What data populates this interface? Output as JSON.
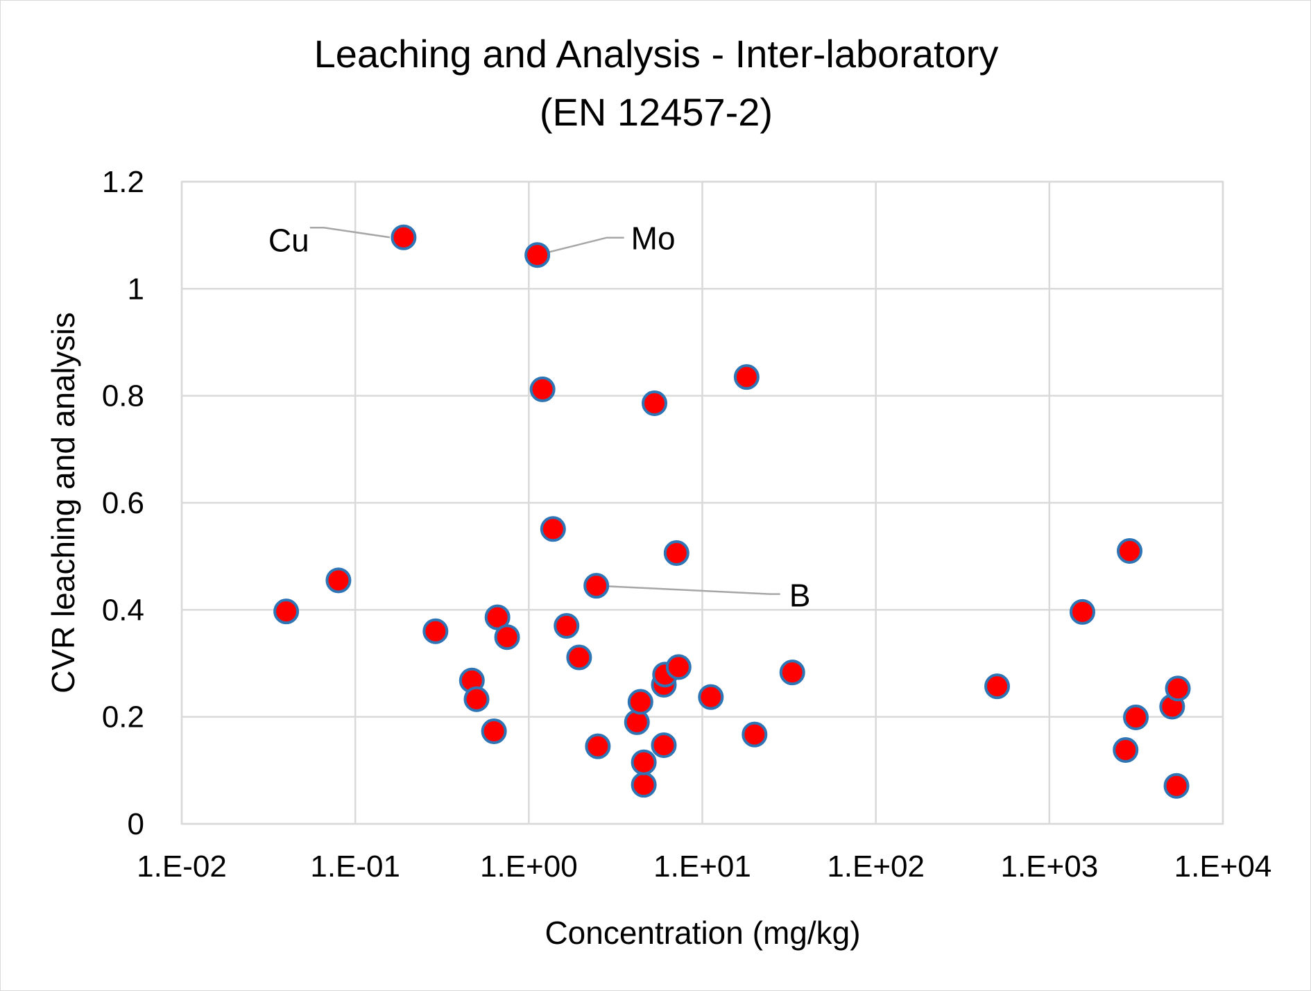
{
  "chart_data": {
    "type": "scatter",
    "title": [
      "Leaching and Analysis - Inter-laboratory",
      "(EN 12457-2)"
    ],
    "xlabel": "Concentration (mg/kg)",
    "ylabel": "CVR leaching and analysis",
    "x_scale": "log",
    "xlim": [
      0.01,
      10000
    ],
    "ylim": [
      0,
      1.2
    ],
    "x_ticks": [
      {
        "value": 0.01,
        "label": "1.E-02"
      },
      {
        "value": 0.1,
        "label": "1.E-01"
      },
      {
        "value": 1,
        "label": "1.E+00"
      },
      {
        "value": 10,
        "label": "1.E+01"
      },
      {
        "value": 100,
        "label": "1.E+02"
      },
      {
        "value": 1000,
        "label": "1.E+03"
      },
      {
        "value": 10000,
        "label": "1.E+04"
      }
    ],
    "y_ticks": [
      {
        "value": 0,
        "label": "0"
      },
      {
        "value": 0.2,
        "label": "0.2"
      },
      {
        "value": 0.4,
        "label": "0.4"
      },
      {
        "value": 0.6,
        "label": "0.6"
      },
      {
        "value": 0.8,
        "label": "0.8"
      },
      {
        "value": 1,
        "label": "1"
      },
      {
        "value": 1.2,
        "label": "1.2"
      }
    ],
    "grid": true,
    "marker_fill": "#ff0000",
    "marker_edge": "#2e75b6",
    "points": [
      {
        "x": 0.04,
        "y": 0.397
      },
      {
        "x": 0.08,
        "y": 0.455
      },
      {
        "x": 0.19,
        "y": 1.096
      },
      {
        "x": 0.29,
        "y": 0.36
      },
      {
        "x": 0.47,
        "y": 0.268
      },
      {
        "x": 0.5,
        "y": 0.233
      },
      {
        "x": 0.63,
        "y": 0.173
      },
      {
        "x": 0.66,
        "y": 0.386
      },
      {
        "x": 0.75,
        "y": 0.349
      },
      {
        "x": 1.12,
        "y": 1.063
      },
      {
        "x": 1.2,
        "y": 0.812
      },
      {
        "x": 1.38,
        "y": 0.551
      },
      {
        "x": 1.65,
        "y": 0.37
      },
      {
        "x": 1.95,
        "y": 0.311
      },
      {
        "x": 2.45,
        "y": 0.445
      },
      {
        "x": 2.5,
        "y": 0.145
      },
      {
        "x": 4.2,
        "y": 0.19
      },
      {
        "x": 4.4,
        "y": 0.228
      },
      {
        "x": 4.6,
        "y": 0.073
      },
      {
        "x": 4.6,
        "y": 0.115
      },
      {
        "x": 5.3,
        "y": 0.786
      },
      {
        "x": 6.0,
        "y": 0.26
      },
      {
        "x": 6.0,
        "y": 0.147
      },
      {
        "x": 6.1,
        "y": 0.279
      },
      {
        "x": 7.1,
        "y": 0.506
      },
      {
        "x": 7.3,
        "y": 0.293
      },
      {
        "x": 11.2,
        "y": 0.237
      },
      {
        "x": 18,
        "y": 0.835
      },
      {
        "x": 20,
        "y": 0.167
      },
      {
        "x": 33,
        "y": 0.283
      },
      {
        "x": 500,
        "y": 0.257
      },
      {
        "x": 1550,
        "y": 0.396
      },
      {
        "x": 2750,
        "y": 0.138
      },
      {
        "x": 2900,
        "y": 0.51
      },
      {
        "x": 3150,
        "y": 0.199
      },
      {
        "x": 5100,
        "y": 0.219
      },
      {
        "x": 5400,
        "y": 0.071
      },
      {
        "x": 5500,
        "y": 0.253
      }
    ],
    "annotations": [
      {
        "text": "Cu",
        "x": 0.19,
        "y": 1.096
      },
      {
        "text": "Mo",
        "x": 1.12,
        "y": 1.063
      },
      {
        "text": "B",
        "x": 2.45,
        "y": 0.445
      }
    ]
  }
}
